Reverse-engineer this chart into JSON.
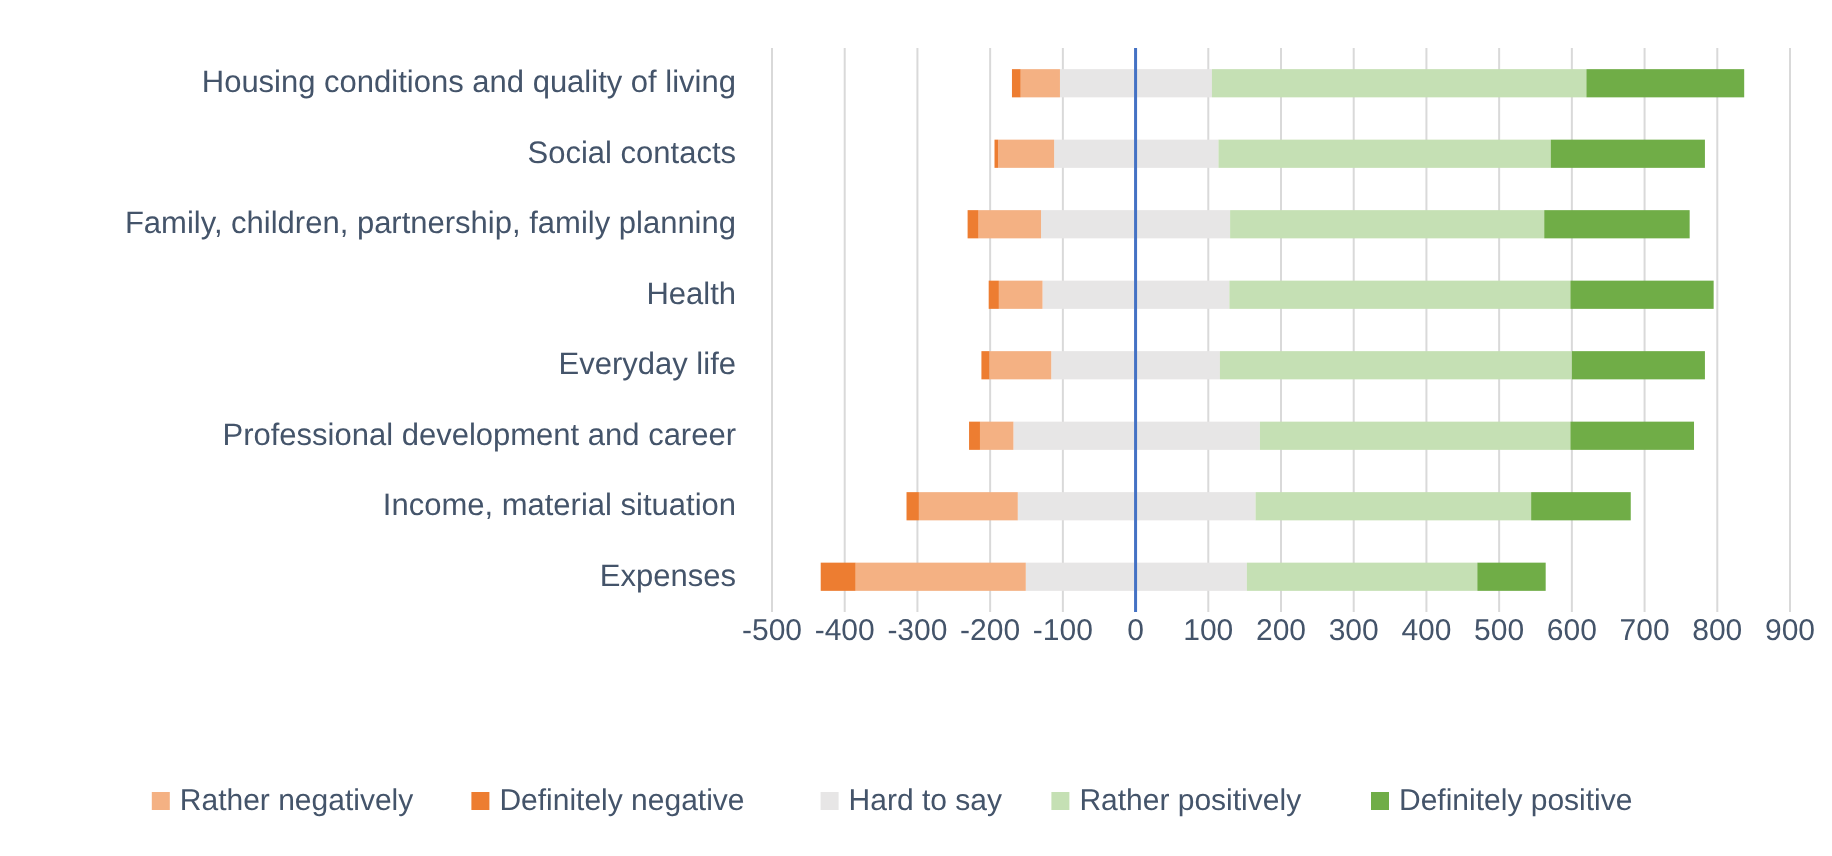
{
  "chart_data": {
    "type": "bar",
    "orientation": "horizontal",
    "stacked": true,
    "categories": [
      "Housing conditions and quality of living",
      "Social contacts",
      "Family, children, partnership, family planning",
      "Health",
      "Everyday life",
      "Professional development and career",
      "Income, material situation",
      "Expenses"
    ],
    "series": [
      {
        "color": "#e7e6e6",
        "values": [
          -104,
          -112,
          -130,
          -128,
          -116,
          -168,
          -162,
          -151
        ]
      },
      {
        "name": "Rather negatively",
        "color": "#f4b183",
        "values": [
          -54,
          -77,
          -86,
          -60,
          -85,
          -46,
          -136,
          -234
        ]
      },
      {
        "name": "Definitely negative",
        "color": "#ed7d31",
        "values": [
          -12,
          -5,
          -15,
          -14,
          -11,
          -15,
          -17,
          -48
        ]
      },
      {
        "name": "Hard to say",
        "color": "#e7e6e6",
        "values": [
          105,
          114,
          130,
          129,
          116,
          171,
          165,
          153
        ]
      },
      {
        "name": "Rather positively",
        "color": "#c5e0b4",
        "values": [
          515,
          457,
          432,
          469,
          484,
          427,
          379,
          317
        ]
      },
      {
        "name": "Definitely positive",
        "color": "#70ad47",
        "values": [
          217,
          212,
          200,
          197,
          183,
          170,
          137,
          94
        ]
      }
    ],
    "xlim": [
      -500,
      900
    ],
    "xticks": [
      -500,
      -400,
      -300,
      -200,
      -100,
      0,
      100,
      200,
      300,
      400,
      500,
      600,
      700,
      800,
      900
    ],
    "ref_lines": [
      {
        "axis": "x",
        "value": 0,
        "color": "#4472c4"
      }
    ],
    "grid": "x",
    "legend": "bottom"
  }
}
